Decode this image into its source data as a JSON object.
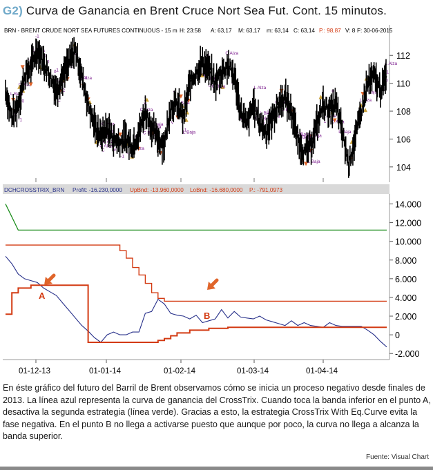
{
  "title": {
    "tag": "G2",
    "paren": ")",
    "text": "Curva de Ganancia en Brent Cruce Nort Sea Fut. Cont. 15 minutos."
  },
  "caption": "En éste gráfico del futuro del Barril de Brent observamos cómo se inicia un proceso negativo desde finales de 2013. La línea azul representa la curva de ganancia del CrossTrix. Cuando toca la banda inferior en el punto A, desactiva la segunda estrategia (línea verde). Gracias a esto, la estrategia CrossTrix With Eq.Curve evita la fase negativa. En el punto B no llega a activarse puesto que aunque por poco, la curva no llega a alcanza la banda superior.",
  "source": "Fuente: Visual Chart",
  "colors": {
    "price": "#000000",
    "profit": "#27308a",
    "upper_band": "#d33a12",
    "lower_band": "#d33a12",
    "second_strategy": "#1a8c1a",
    "arrow": "#e0652b",
    "annotation": "#7a1a8c",
    "accent": "#6fa9c9",
    "panel_bar": "#d9d9d9"
  },
  "chart_data": [
    {
      "type": "line",
      "panel": "price",
      "header": {
        "symbol": "BRN - BRENT CRUDE NORT SEA FUTURES CONTINUOUS - 15 m",
        "h": "H: 23:58",
        "a": "A: 63,17",
        "m": "M: 63,17",
        "mn": "m: 63,14",
        "c": "C: 63,14",
        "p": "P.: 98,87",
        "v": "V: 8",
        "f": "F: 30-06-2015"
      },
      "y_ticks": [
        "104",
        "106",
        "108",
        "110",
        "112"
      ],
      "ylim": [
        103.2,
        113.2
      ],
      "x_ticks": [
        "01-12-13",
        "01-01-14",
        "01-02-14",
        "01-03-14",
        "01-04-14"
      ],
      "x": [
        0,
        3,
        6,
        9,
        12,
        15,
        18,
        21,
        24,
        27,
        30,
        33,
        36,
        39,
        42,
        45,
        48,
        51,
        54,
        57,
        60,
        63,
        66,
        69,
        72,
        75,
        78,
        81,
        84,
        87,
        90,
        93,
        96,
        99,
        102,
        105,
        108,
        111,
        114,
        117,
        120,
        123,
        126,
        129,
        132,
        135,
        138,
        141,
        144,
        147,
        150,
        153,
        156,
        159,
        162,
        165,
        168,
        171,
        174,
        177,
        180
      ],
      "series": [
        {
          "values": [
            109.5,
            107.5,
            108.5,
            110.5,
            111.2,
            112.4,
            111.5,
            110.5,
            109.5,
            110.5,
            111.5,
            112.4,
            110.5,
            108.5,
            107.0,
            106.2,
            106.8,
            106.0,
            105.8,
            106.0,
            105.5,
            106.5,
            108.0,
            106.8,
            106.0,
            105.6,
            108.3,
            108.5,
            107.5,
            110.0,
            110.8,
            111.5,
            111.0,
            110.0,
            110.8,
            111.3,
            110.5,
            108.0,
            107.0,
            108.5,
            107.2,
            106.5,
            107.5,
            108.5,
            109.0,
            108.0,
            106.0,
            105.0,
            105.5,
            107.0,
            108.5,
            108.0,
            108.5,
            106.5,
            104.2,
            106.0,
            108.0,
            110.0,
            110.5,
            109.5,
            110.5
          ]
        }
      ]
    },
    {
      "type": "line",
      "panel": "equity",
      "header": {
        "name": "DCHCROSSTRIX_BRN",
        "profit": "Profit: -16.230,0000",
        "upbnd": "UpBnd: -13.960,0000",
        "lobnd": "LoBnd: -16.680,0000",
        "p": "P.: -791,0973"
      },
      "y_ticks": [
        "-2.000",
        "0",
        "2.000",
        "4.000",
        "6.000",
        "8.000",
        "10.000",
        "12.000",
        "14.000"
      ],
      "ylim": [
        -2500,
        14700
      ],
      "x_ticks": [
        "01-12-13",
        "01-01-14",
        "01-02-14",
        "01-03-14",
        "01-04-14"
      ],
      "x": [
        0,
        3,
        6,
        9,
        12,
        15,
        18,
        21,
        24,
        27,
        30,
        33,
        36,
        39,
        42,
        45,
        48,
        51,
        54,
        57,
        60,
        63,
        66,
        69,
        72,
        75,
        78,
        81,
        84,
        87,
        90,
        93,
        96,
        99,
        102,
        105,
        108,
        111,
        114,
        117,
        120,
        123,
        126,
        129,
        132,
        135,
        138,
        141,
        144,
        147,
        150,
        153,
        156,
        159,
        162,
        165,
        168,
        171,
        174,
        177,
        180
      ],
      "series": [
        {
          "name": "Profit",
          "values": [
            8400,
            7600,
            6500,
            6000,
            5800,
            5600,
            5000,
            4600,
            4200,
            3400,
            2600,
            1800,
            1000,
            400,
            -300,
            -800,
            0,
            300,
            0,
            0,
            300,
            300,
            2300,
            2500,
            3800,
            3300,
            2300,
            2100,
            2000,
            1700,
            2100,
            1300,
            1500,
            1700,
            2700,
            1800,
            2500,
            1900,
            1800,
            1700,
            2000,
            1600,
            1400,
            1200,
            1000,
            1500,
            1000,
            1300,
            1000,
            900,
            800,
            1300,
            1000,
            900,
            900,
            900,
            900,
            500,
            0,
            -700,
            -1300
          ]
        },
        {
          "name": "UpBnd",
          "values": [
            9600,
            9600,
            9600,
            9600,
            9600,
            9600,
            9600,
            9600,
            9600,
            9600,
            9600,
            9600,
            9600,
            9600,
            9600,
            9600,
            9600,
            9600,
            9000,
            8200,
            7200,
            6400,
            5500,
            4500,
            3900,
            3600,
            3600,
            3600,
            3600,
            3600,
            3600,
            3600,
            3600,
            3600,
            3600,
            3600,
            3600,
            3600,
            3600,
            3600,
            3600,
            3600,
            3600,
            3600,
            3600,
            3600,
            3600,
            3600,
            3600,
            3600,
            3600,
            3600,
            3600,
            3600,
            3600,
            3600,
            3600,
            3600,
            3600,
            3600,
            3600
          ]
        },
        {
          "name": "LoBnd",
          "values": [
            2200,
            4500,
            5000,
            5000,
            5300,
            5300,
            5300,
            5300,
            5300,
            5300,
            5300,
            5300,
            5300,
            -800,
            -800,
            -800,
            -800,
            -800,
            -800,
            -800,
            -800,
            -800,
            -800,
            -800,
            -600,
            -400,
            -100,
            200,
            200,
            500,
            500,
            500,
            700,
            700,
            700,
            800,
            800,
            800,
            800,
            800,
            800,
            800,
            800,
            800,
            800,
            800,
            800,
            800,
            800,
            800,
            800,
            800,
            800,
            800,
            800,
            800,
            800,
            800,
            800,
            800,
            800
          ]
        },
        {
          "name": "Second strategy",
          "values": [
            14000,
            12600,
            11200,
            11200,
            11200,
            11200,
            11200,
            11200,
            11200,
            11200,
            11200,
            11200,
            11200,
            11200,
            11200,
            11200,
            11200,
            11200,
            11200,
            11200,
            11200,
            11200,
            11200,
            11200,
            11200,
            11200,
            11200,
            11200,
            11200,
            11200,
            11200,
            11200,
            11200,
            11200,
            11200,
            11200,
            11200,
            11200,
            11200,
            11200,
            11200,
            11200,
            11200,
            11200,
            11200,
            11200,
            11200,
            11200,
            11200,
            11200,
            11200,
            11200,
            11200,
            11200,
            11200,
            11200,
            11200,
            11200,
            11200,
            11200,
            11200
          ]
        }
      ],
      "annotations": [
        "A",
        "B"
      ]
    }
  ]
}
